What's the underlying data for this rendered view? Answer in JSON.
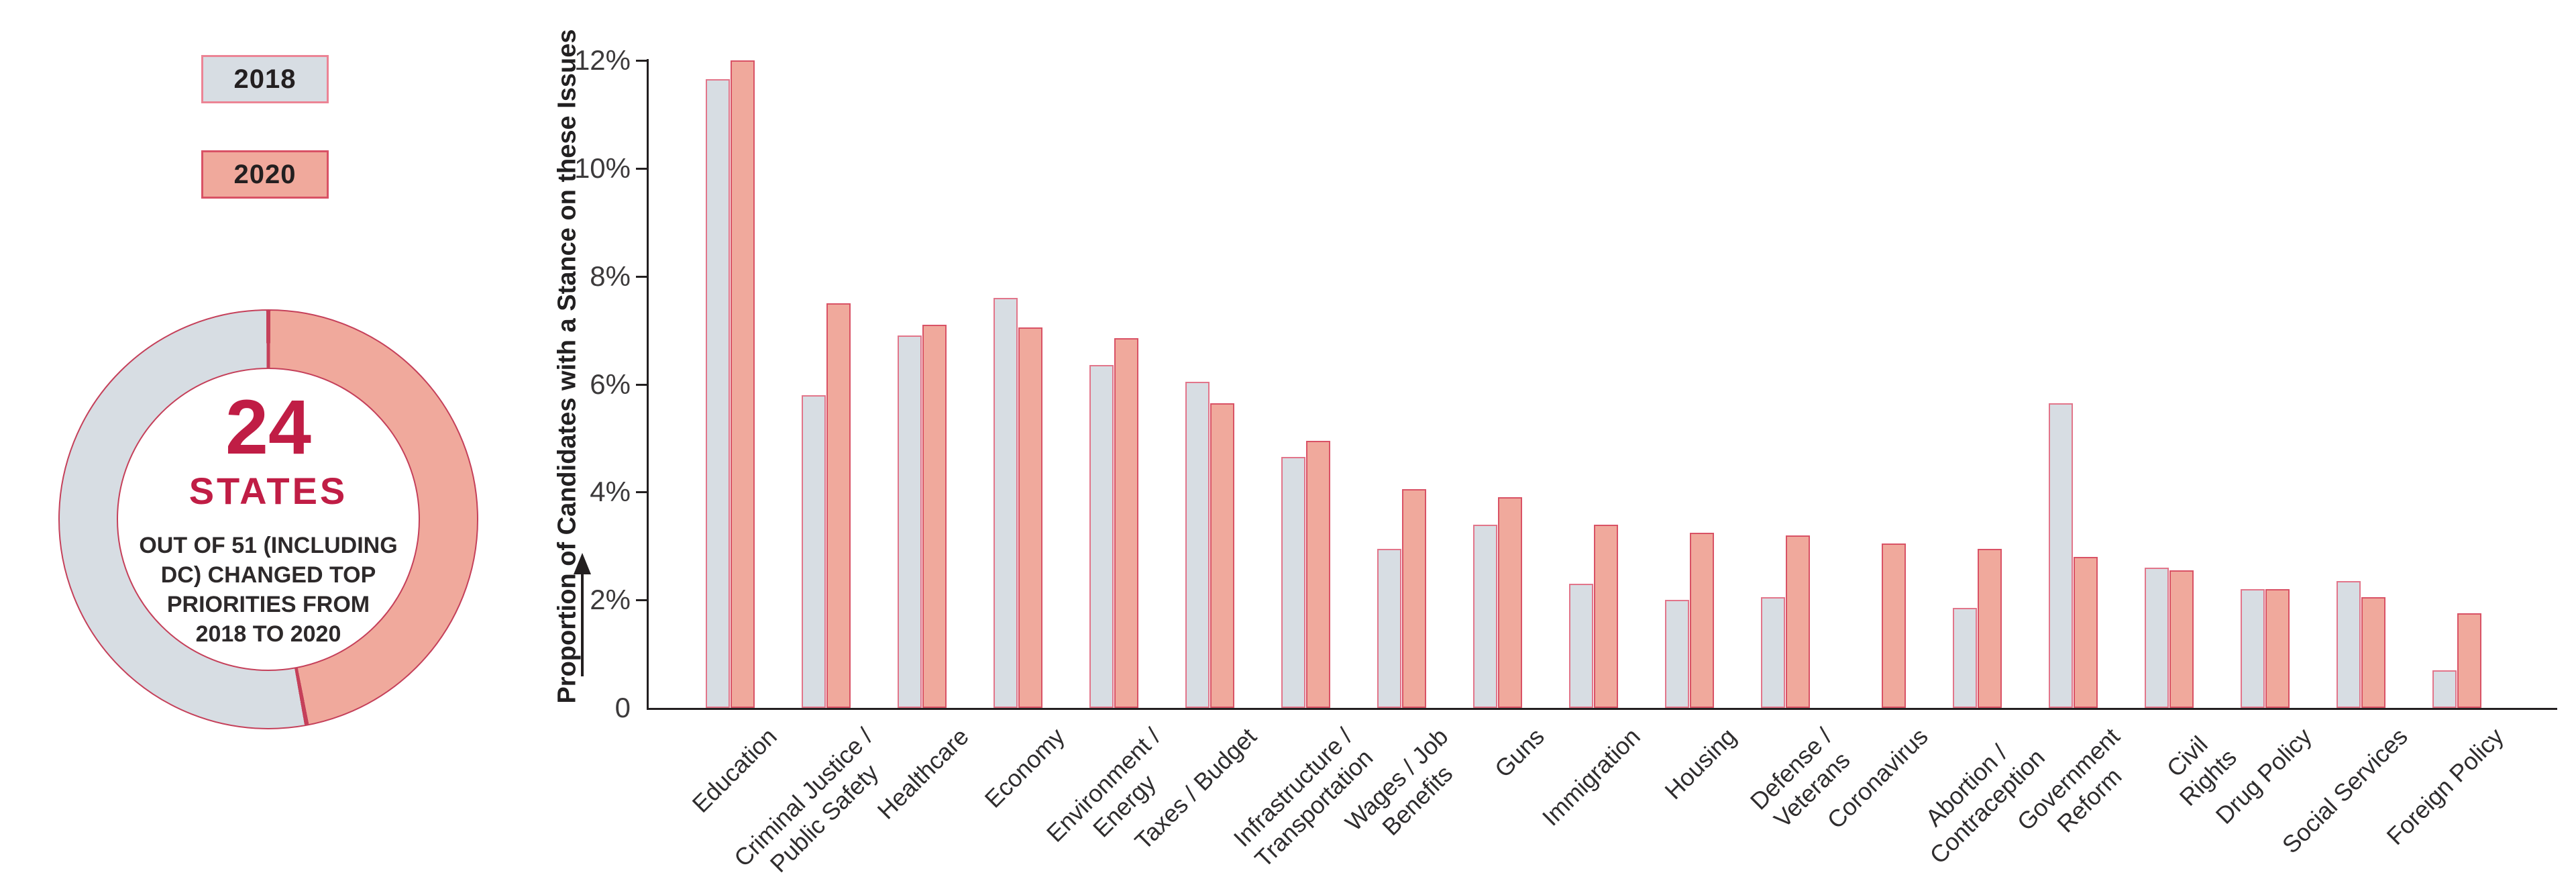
{
  "colors": {
    "gray_fill": "#d7dde3",
    "gray_border": "#e2758a",
    "salmon_fill": "#f0a99c",
    "salmon_border": "#d95265",
    "crimson": "#c01d45",
    "axis": "#231f20",
    "donut_outline": "#c5405a"
  },
  "legend": {
    "items": [
      {
        "label": "2018",
        "fill": "#d7dde3",
        "border": "#ec8495"
      },
      {
        "label": "2020",
        "fill": "#f0a99c",
        "border": "#d95265"
      }
    ]
  },
  "donut": {
    "value": "24",
    "value_label": "STATES",
    "description": "OUT OF 51 (INCLUDING\nDC) CHANGED TOP\nPRIORITIES FROM\n2018 TO 2020",
    "states_changed": 24,
    "states_total": 51
  },
  "chart_data": {
    "type": "bar",
    "title": "",
    "xlabel": "",
    "ylabel": "Proportion of Candidates with a Stance on these Issues",
    "ylim": [
      0,
      12
    ],
    "grid": false,
    "legend_position": "upper-left",
    "yticks": [
      {
        "value": 12,
        "label": "12%"
      },
      {
        "value": 10,
        "label": "10%"
      },
      {
        "value": 8,
        "label": "8%"
      },
      {
        "value": 6,
        "label": "6%"
      },
      {
        "value": 4,
        "label": "4%"
      },
      {
        "value": 2,
        "label": "2%"
      },
      {
        "value": 0,
        "label": "0"
      }
    ],
    "categories": [
      "Education",
      "Criminal Justice /\nPublic Safety",
      "Healthcare",
      "Economy",
      "Environment /\nEnergy",
      "Taxes / Budget",
      "Infrastructure /\nTransportation",
      "Wages / Job\nBenefits",
      "Guns",
      "Immigration",
      "Housing",
      "Defense /\nVeterans",
      "Coronavirus",
      "Abortion /\nContraception",
      "Government\nReform",
      "Civil\nRights",
      "Drug Policy",
      "Social Services",
      "Foreign Policy"
    ],
    "series": [
      {
        "name": "2018",
        "fill": "#d7dde3",
        "border": "#e2758a",
        "values": [
          11.65,
          5.8,
          6.9,
          7.6,
          6.35,
          6.05,
          4.65,
          2.95,
          3.4,
          2.3,
          2.0,
          2.05,
          0,
          1.85,
          5.65,
          2.6,
          2.2,
          2.35,
          0.7
        ]
      },
      {
        "name": "2020",
        "fill": "#f0a99c",
        "border": "#d95265",
        "values": [
          12.0,
          7.5,
          7.1,
          7.05,
          6.85,
          5.65,
          4.95,
          4.05,
          3.9,
          3.4,
          3.25,
          3.2,
          3.05,
          2.95,
          2.8,
          2.55,
          2.2,
          2.05,
          1.75
        ]
      }
    ]
  }
}
